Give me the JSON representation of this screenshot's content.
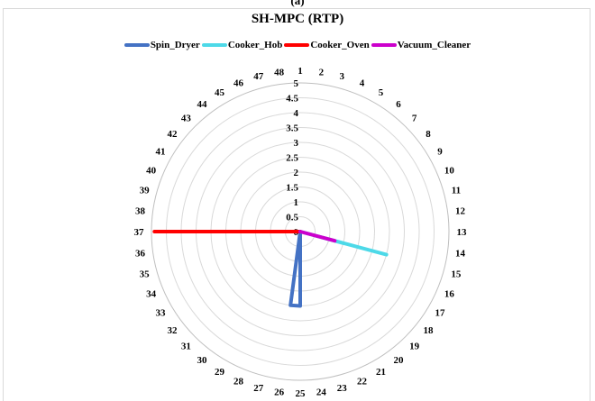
{
  "caption": "(a)",
  "chart_data": {
    "type": "radar",
    "title": "SH-MPC (RTP)",
    "categories": [
      "1",
      "2",
      "3",
      "4",
      "5",
      "6",
      "7",
      "8",
      "9",
      "10",
      "11",
      "12",
      "13",
      "14",
      "15",
      "16",
      "17",
      "18",
      "19",
      "20",
      "21",
      "22",
      "23",
      "24",
      "25",
      "26",
      "27",
      "28",
      "29",
      "30",
      "31",
      "32",
      "33",
      "34",
      "35",
      "36",
      "37",
      "38",
      "39",
      "40",
      "41",
      "42",
      "43",
      "44",
      "45",
      "46",
      "47",
      "48"
    ],
    "rlim": [
      0,
      5
    ],
    "ticks": [
      "0",
      "0.5",
      "1",
      "1.5",
      "2",
      "2.5",
      "3",
      "3.5",
      "4",
      "4.5",
      "5"
    ],
    "legend_position": "top",
    "series": [
      {
        "name": "Spin_Dryer",
        "color": "#4472c4",
        "values": [
          0,
          0,
          0,
          0,
          0,
          0,
          0,
          0,
          0,
          0,
          0,
          0,
          0,
          0,
          0,
          0,
          0,
          0,
          0,
          0,
          0,
          0,
          0,
          0,
          2.5,
          2.5,
          0,
          0,
          0,
          0,
          0,
          0,
          0,
          0,
          0,
          0,
          0,
          0,
          0,
          0,
          0,
          0,
          0,
          0,
          0,
          0,
          0,
          0
        ]
      },
      {
        "name": "Cooker_Hob",
        "color": "#4dd9e8",
        "values": [
          0,
          0,
          0,
          0,
          0,
          0,
          0,
          0,
          0,
          0,
          0,
          0,
          0,
          0,
          3.0,
          0,
          0,
          0,
          0,
          0,
          0,
          0,
          0,
          0,
          0,
          0,
          0,
          0,
          0,
          0,
          0,
          0,
          0,
          0,
          0,
          0,
          0,
          0,
          0,
          0,
          0,
          0,
          0,
          0,
          0,
          0,
          0,
          0
        ]
      },
      {
        "name": "Cooker_Oven",
        "color": "#ff0000",
        "values": [
          0,
          0,
          0,
          0,
          0,
          0,
          0,
          0,
          0,
          0,
          0,
          0,
          0,
          0,
          0,
          0,
          0,
          0,
          0,
          0,
          0,
          0,
          0,
          0,
          0,
          0,
          0,
          0,
          0,
          0,
          0,
          0,
          0,
          0,
          0,
          0,
          4.9,
          0,
          0,
          0,
          0,
          0,
          0,
          0,
          0,
          0,
          0,
          0
        ]
      },
      {
        "name": "Vacuum_Cleaner",
        "color": "#cc00cc",
        "values": [
          0,
          0,
          0,
          0,
          0,
          0,
          0,
          0,
          0,
          0,
          0,
          0,
          0,
          0,
          1.2,
          0,
          0,
          0,
          0,
          0,
          0,
          0,
          0,
          0,
          0,
          0,
          0,
          0,
          0,
          0,
          0,
          0,
          0,
          0,
          0,
          0,
          0,
          0,
          0,
          0,
          0,
          0,
          0,
          0,
          0,
          0,
          0,
          0
        ]
      }
    ]
  }
}
